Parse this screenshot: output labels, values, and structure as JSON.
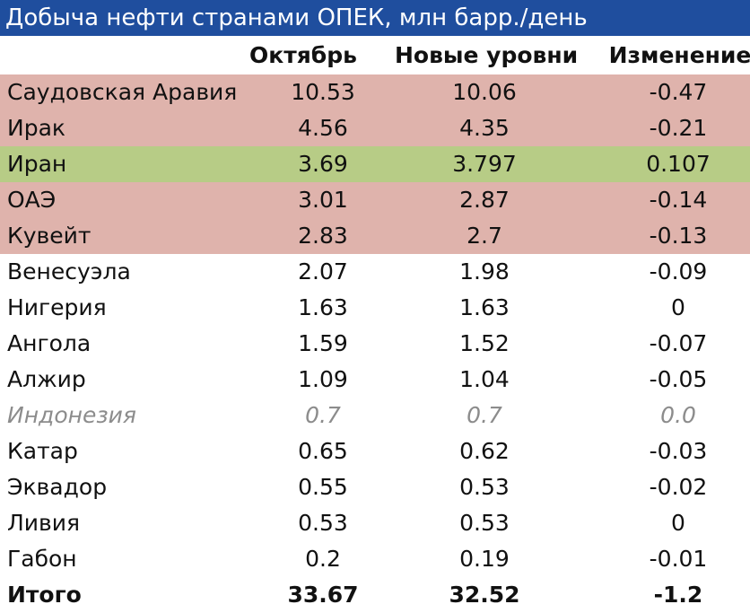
{
  "title": "Добыча нефти странами ОПЕК, млн барр./день",
  "headers": [
    "",
    "Октябрь",
    "Новые уровни",
    "Изменение"
  ],
  "colors": {
    "title_bg": "#1f4e9e",
    "decrease_row": "#dfb3ac",
    "increase_row": "#b7cc86",
    "muted_text": "#8c8c8c"
  },
  "chart_data": {
    "type": "table",
    "title": "Добыча нефти странами ОПЕК, млн барр./день",
    "columns": [
      "",
      "Октябрь",
      "Новые уровни",
      "Изменение"
    ],
    "rows": [
      {
        "country": "Саудовская Аравия",
        "october": "10.53",
        "new_level": "10.06",
        "change": "-0.47",
        "style": "down"
      },
      {
        "country": "Ирак",
        "october": "4.56",
        "new_level": "4.35",
        "change": "-0.21",
        "style": "down"
      },
      {
        "country": "Иран",
        "october": "3.69",
        "new_level": "3.797",
        "change": "0.107",
        "style": "up"
      },
      {
        "country": "ОАЭ",
        "october": "3.01",
        "new_level": "2.87",
        "change": "-0.14",
        "style": "down"
      },
      {
        "country": "Кувейт",
        "october": "2.83",
        "new_level": "2.7",
        "change": "-0.13",
        "style": "down"
      },
      {
        "country": "Венесуэла",
        "october": "2.07",
        "new_level": "1.98",
        "change": "-0.09",
        "style": "plain"
      },
      {
        "country": "Нигерия",
        "october": "1.63",
        "new_level": "1.63",
        "change": "0",
        "style": "plain"
      },
      {
        "country": "Ангола",
        "october": "1.59",
        "new_level": "1.52",
        "change": "-0.07",
        "style": "plain"
      },
      {
        "country": "Алжир",
        "october": "1.09",
        "new_level": "1.04",
        "change": "-0.05",
        "style": "plain"
      },
      {
        "country": "Индонезия",
        "october": "0.7",
        "new_level": "0.7",
        "change": "0.0",
        "style": "italic"
      },
      {
        "country": "Катар",
        "october": "0.65",
        "new_level": "0.62",
        "change": "-0.03",
        "style": "plain"
      },
      {
        "country": "Эквадор",
        "october": "0.55",
        "new_level": "0.53",
        "change": "-0.02",
        "style": "plain"
      },
      {
        "country": "Ливия",
        "october": "0.53",
        "new_level": "0.53",
        "change": "0",
        "style": "plain"
      },
      {
        "country": "Габон",
        "october": "0.2",
        "new_level": "0.19",
        "change": "-0.01",
        "style": "plain"
      },
      {
        "country": "Итого",
        "october": "33.67",
        "new_level": "32.52",
        "change": "-1.2",
        "style": "total"
      }
    ]
  }
}
